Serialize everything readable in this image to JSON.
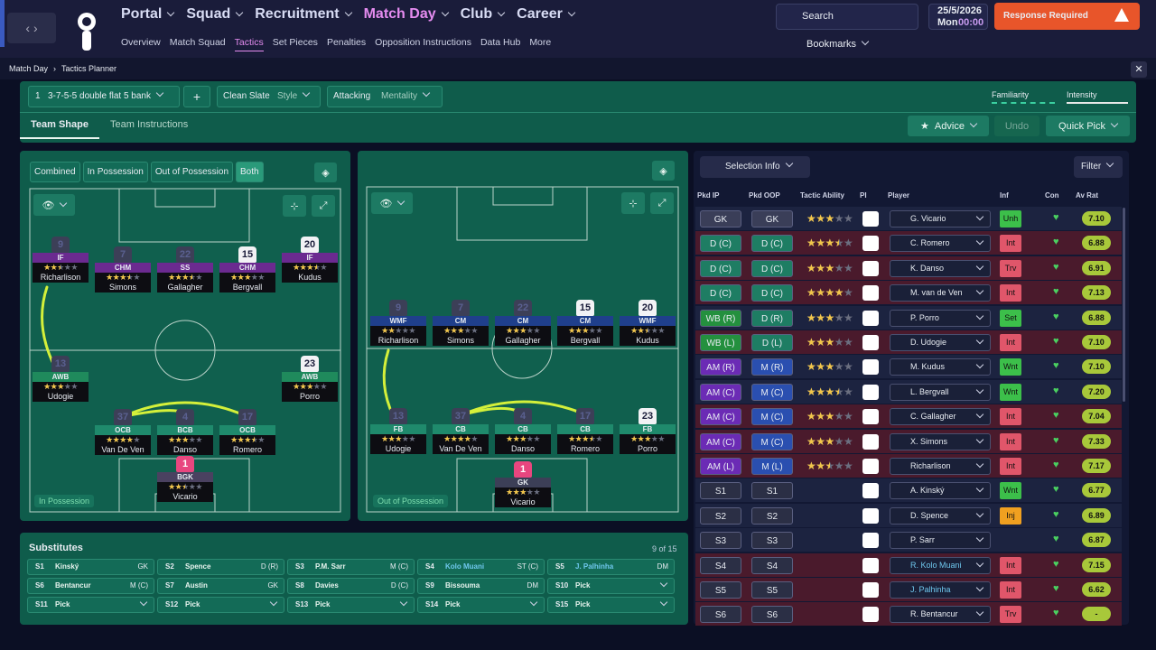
{
  "header": {
    "nav": [
      "Portal",
      "Squad",
      "Recruitment",
      "Match Day",
      "Club",
      "Career"
    ],
    "active_nav": 3,
    "subnav": [
      "Overview",
      "Match Squad",
      "Tactics",
      "Set Pieces",
      "Penalties",
      "Opposition Instructions",
      "Data Hub",
      "More"
    ],
    "active_subnav": 2,
    "search": "Search",
    "date": "25/5/2026",
    "day": "Mon",
    "time": "00:00",
    "alert": "Response Required",
    "bookmarks": "Bookmarks"
  },
  "breadcrumb": [
    "Match Day",
    "Tactics Planner"
  ],
  "tactic": {
    "slot": "1",
    "name": "3-7-5-5 double flat 5 bank",
    "style_value": "Clean Slate",
    "style_label": "Style",
    "mentality_value": "Attacking",
    "mentality_label": "Mentality",
    "familiarity": "Familiarity",
    "intensity": "Intensity"
  },
  "tabs": [
    "Team Shape",
    "Team Instructions"
  ],
  "active_tab": 0,
  "actions": {
    "advice": "Advice",
    "undo": "Undo",
    "quick_pick": "Quick Pick"
  },
  "view_modes": [
    "Combined",
    "In Possession",
    "Out of Possession",
    "Both"
  ],
  "active_view": 3,
  "pitches": [
    {
      "label": "In Possession",
      "players": [
        {
          "role": "IF",
          "number": 9,
          "name": "Richarlison",
          "stars": 2.5,
          "color": "#6b2a90",
          "shirt": "#3c3f57"
        },
        {
          "role": "CHM",
          "number": 7,
          "name": "Simons",
          "stars": 3.5,
          "color": "#6b2a90",
          "shirt": "#3c3f57"
        },
        {
          "role": "SS",
          "number": 22,
          "name": "Gallagher",
          "stars": 3.5,
          "color": "#6b2a90",
          "shirt": "#3c3f57"
        },
        {
          "role": "CHM",
          "number": 15,
          "name": "Bergvall",
          "stars": 3,
          "color": "#6b2a90",
          "shirt": "#f2f2f5"
        },
        {
          "role": "IF",
          "number": 20,
          "name": "Kudus",
          "stars": 3.5,
          "color": "#6b2a90",
          "shirt": "#f2f2f5"
        },
        {
          "role": "AWB",
          "number": 13,
          "name": "Udogie",
          "stars": 3,
          "color": "#1f8a5c",
          "shirt": "#3c3f57"
        },
        {
          "role": "AWB",
          "number": 23,
          "name": "Porro",
          "stars": 3,
          "color": "#1f8a5c",
          "shirt": "#f2f2f5"
        },
        {
          "role": "OCB",
          "number": 37,
          "name": "Van De Ven",
          "stars": 4,
          "color": "#1f8a6c",
          "shirt": "#3c3f57"
        },
        {
          "role": "BCB",
          "number": 4,
          "name": "Danso",
          "stars": 3,
          "color": "#1f8a6c",
          "shirt": "#3c3f57"
        },
        {
          "role": "OCB",
          "number": 17,
          "name": "Romero",
          "stars": 3.5,
          "color": "#1f8a6c",
          "shirt": "#3c3f57"
        },
        {
          "role": "BGK",
          "number": 1,
          "name": "Vicario",
          "stars": 2.5,
          "color": "#4a4160",
          "shirt": "#e8467f"
        }
      ]
    },
    {
      "label": "Out of Possession",
      "players": [
        {
          "role": "WMF",
          "number": 9,
          "name": "Richarlison",
          "stars": 2,
          "color": "#1f3f8c",
          "shirt": "#3c3f57"
        },
        {
          "role": "CM",
          "number": 7,
          "name": "Simons",
          "stars": 3,
          "color": "#1f3f8c",
          "shirt": "#3c3f57"
        },
        {
          "role": "CM",
          "number": 22,
          "name": "Gallagher",
          "stars": 3,
          "color": "#1f3f8c",
          "shirt": "#3c3f57"
        },
        {
          "role": "CM",
          "number": 15,
          "name": "Bergvall",
          "stars": 3,
          "color": "#1f3f8c",
          "shirt": "#f2f2f5"
        },
        {
          "role": "WMF",
          "number": 20,
          "name": "Kudus",
          "stars": 2.5,
          "color": "#1f3f8c",
          "shirt": "#f2f2f5"
        },
        {
          "role": "FB",
          "number": 13,
          "name": "Udogie",
          "stars": 3,
          "color": "#1f8a6c",
          "shirt": "#3c3f57"
        },
        {
          "role": "CB",
          "number": 37,
          "name": "Van De Ven",
          "stars": 4,
          "color": "#1f8a6c",
          "shirt": "#3c3f57"
        },
        {
          "role": "CB",
          "number": 4,
          "name": "Danso",
          "stars": 3,
          "color": "#1f8a6c",
          "shirt": "#3c3f57"
        },
        {
          "role": "CB",
          "number": 17,
          "name": "Romero",
          "stars": 3.5,
          "color": "#1f8a6c",
          "shirt": "#3c3f57"
        },
        {
          "role": "FB",
          "number": 23,
          "name": "Porro",
          "stars": 3,
          "color": "#1f8a6c",
          "shirt": "#f2f2f5"
        },
        {
          "role": "GK",
          "number": 1,
          "name": "Vicario",
          "stars": 3,
          "color": "#3c3f57",
          "shirt": "#e8467f"
        }
      ]
    }
  ],
  "substitutes": {
    "title": "Substitutes",
    "count": "9 of 15",
    "slots": [
      {
        "slot": "S1",
        "name": "Kinský",
        "position": "GK"
      },
      {
        "slot": "S2",
        "name": "Spence",
        "position": "D (R)"
      },
      {
        "slot": "S3",
        "name": "P.M. Sarr",
        "position": "M (C)"
      },
      {
        "slot": "S4",
        "name": "Kolo Muani",
        "position": "ST (C)",
        "name_color": "#6fc8ee"
      },
      {
        "slot": "S5",
        "name": "J. Palhinha",
        "position": "DM",
        "name_color": "#6fc8ee"
      },
      {
        "slot": "S6",
        "name": "Bentancur",
        "position": "M (C)"
      },
      {
        "slot": "S7",
        "name": "Austin",
        "position": "GK"
      },
      {
        "slot": "S8",
        "name": "Davies",
        "position": "D (C)"
      },
      {
        "slot": "S9",
        "name": "Bissouma",
        "position": "DM"
      },
      {
        "slot": "S10",
        "name": "Pick"
      },
      {
        "slot": "S11",
        "name": "Pick"
      },
      {
        "slot": "S12",
        "name": "Pick"
      },
      {
        "slot": "S13",
        "name": "Pick"
      },
      {
        "slot": "S14",
        "name": "Pick"
      },
      {
        "slot": "S15",
        "name": "Pick"
      }
    ]
  },
  "selection": {
    "title": "Selection Info",
    "filter": "Filter",
    "columns": [
      "Pkd IP",
      "Pkd OOP",
      "Tactic Ability",
      "PI",
      "Player",
      "Inf",
      "Con",
      "Av Rat"
    ],
    "rows": [
      {
        "ip": "GK",
        "oop": "GK",
        "ip_color": "#3a3e58",
        "oop_color": "#3a3e58",
        "ability": 3,
        "player": "G. Vicario",
        "inf": "Unh",
        "inf_color": "#3cbf4a",
        "rating": "7.10",
        "row_color": "#1c2340"
      },
      {
        "ip": "D (C)",
        "oop": "D (C)",
        "ip_color": "#1e7d63",
        "oop_color": "#1e7d63",
        "ability": 3.5,
        "player": "C. Romero",
        "inf": "Int",
        "inf_color": "#e0566a",
        "rating": "6.88",
        "row_color": "#4a1a2c"
      },
      {
        "ip": "D (C)",
        "oop": "D (C)",
        "ip_color": "#1e7d63",
        "oop_color": "#1e7d63",
        "ability": 3,
        "player": "K. Danso",
        "inf": "Trv",
        "inf_color": "#e0566a",
        "rating": "6.91",
        "row_color": "#4a1a2c"
      },
      {
        "ip": "D (C)",
        "oop": "D (C)",
        "ip_color": "#1e7d63",
        "oop_color": "#1e7d63",
        "ability": 4,
        "player": "M. van de Ven",
        "inf": "Int",
        "inf_color": "#e0566a",
        "rating": "7.13",
        "row_color": "#4a1a2c"
      },
      {
        "ip": "WB (R)",
        "oop": "D (R)",
        "ip_color": "#24903e",
        "oop_color": "#1e7d63",
        "ability": 3,
        "player": "P. Porro",
        "inf": "Set",
        "inf_color": "#3cbf4a",
        "rating": "6.88",
        "row_color": "#1c2340"
      },
      {
        "ip": "WB (L)",
        "oop": "D (L)",
        "ip_color": "#24903e",
        "oop_color": "#1e7d63",
        "ability": 3,
        "player": "D. Udogie",
        "inf": "Int",
        "inf_color": "#e0566a",
        "rating": "7.10",
        "row_color": "#4a1a2c"
      },
      {
        "ip": "AM (R)",
        "oop": "M (R)",
        "ip_color": "#6b2bb5",
        "oop_color": "#2a4fb0",
        "ability": 3,
        "player": "M. Kudus",
        "inf": "Wnt",
        "inf_color": "#3cbf4a",
        "rating": "7.10",
        "row_color": "#1c2340"
      },
      {
        "ip": "AM (C)",
        "oop": "M (C)",
        "ip_color": "#6b2bb5",
        "oop_color": "#2a4fb0",
        "ability": 3.5,
        "player": "L. Bergvall",
        "inf": "Wnt",
        "inf_color": "#3cbf4a",
        "rating": "7.20",
        "row_color": "#1c2340"
      },
      {
        "ip": "AM (C)",
        "oop": "M (C)",
        "ip_color": "#6b2bb5",
        "oop_color": "#2a4fb0",
        "ability": 3,
        "player": "C. Gallagher",
        "inf": "Int",
        "inf_color": "#e0566a",
        "rating": "7.04",
        "row_color": "#4a1a2c"
      },
      {
        "ip": "AM (C)",
        "oop": "M (C)",
        "ip_color": "#6b2bb5",
        "oop_color": "#2a4fb0",
        "ability": 3,
        "player": "X. Simons",
        "inf": "Int",
        "inf_color": "#e0566a",
        "rating": "7.33",
        "row_color": "#4a1a2c"
      },
      {
        "ip": "AM (L)",
        "oop": "M (L)",
        "ip_color": "#6b2bb5",
        "oop_color": "#2a4fb0",
        "ability": 2.5,
        "player": "Richarlison",
        "inf": "Int",
        "inf_color": "#e0566a",
        "rating": "7.17",
        "row_color": "#4a1a2c"
      },
      {
        "ip": "S1",
        "oop": "S1",
        "ip_color": "#2b2f45",
        "oop_color": "#2b2f45",
        "player": "A. Kinský",
        "inf": "Wnt",
        "inf_color": "#3cbf4a",
        "rating": "6.77",
        "row_color": "#1c2340"
      },
      {
        "ip": "S2",
        "oop": "S2",
        "ip_color": "#2b2f45",
        "oop_color": "#2b2f45",
        "player": "D. Spence",
        "inf": "Inj",
        "inf_color": "#f0a020",
        "rating": "6.89",
        "row_color": "#1c2340"
      },
      {
        "ip": "S3",
        "oop": "S3",
        "ip_color": "#2b2f45",
        "oop_color": "#2b2f45",
        "player": "P. Sarr",
        "rating": "6.87",
        "row_color": "#1c2340"
      },
      {
        "ip": "S4",
        "oop": "S4",
        "ip_color": "#2b2f45",
        "oop_color": "#2b2f45",
        "player": "R. Kolo Muani",
        "name_color": "#6fc8ee",
        "inf": "Int",
        "inf_color": "#e0566a",
        "rating": "7.15",
        "row_color": "#4a1a2c"
      },
      {
        "ip": "S5",
        "oop": "S5",
        "ip_color": "#2b2f45",
        "oop_color": "#2b2f45",
        "player": "J. Palhinha",
        "name_color": "#6fc8ee",
        "inf": "Int",
        "inf_color": "#e0566a",
        "rating": "6.62",
        "row_color": "#4a1a2c"
      },
      {
        "ip": "S6",
        "oop": "S6",
        "ip_color": "#2b2f45",
        "oop_color": "#2b2f45",
        "player": "R. Bentancur",
        "inf": "Trv",
        "inf_color": "#e0566a",
        "rating": "-",
        "row_color": "#4a1a2c"
      }
    ]
  }
}
